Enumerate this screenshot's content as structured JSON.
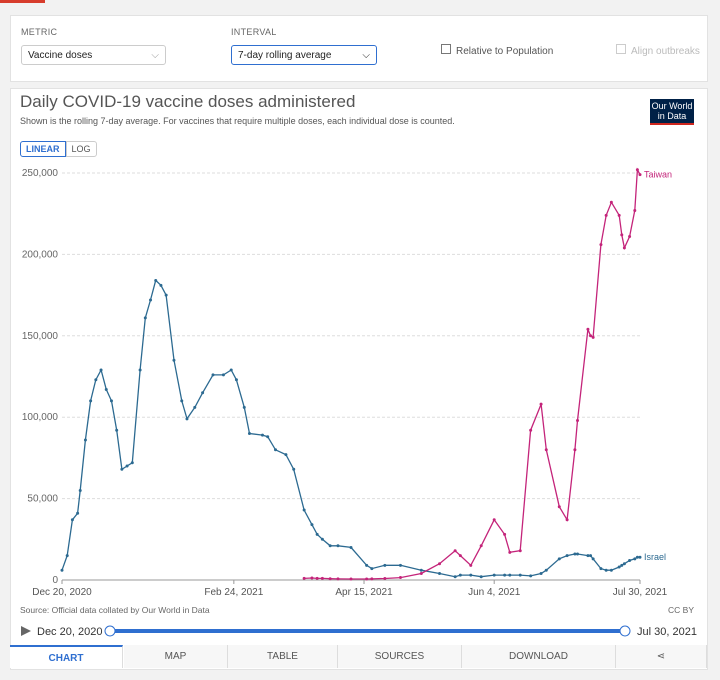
{
  "controls": {
    "metric_label": "METRIC",
    "metric_value": "Vaccine doses",
    "interval_label": "INTERVAL",
    "interval_value": "7-day rolling average",
    "relative": "Relative to Population",
    "align": "Align outbreaks"
  },
  "logo": "Our World in Data",
  "scale_buttons": [
    "LINEAR",
    "LOG"
  ],
  "chart_data": {
    "type": "line",
    "title": "Daily COVID-19 vaccine doses administered",
    "subtitle": "Shown is the rolling 7-day average. For vaccines that require multiple doses, each individual dose is counted.",
    "x": [
      "2020-12-20",
      "2020-12-22",
      "2020-12-24",
      "2020-12-26",
      "2020-12-27",
      "2020-12-29",
      "2020-12-31",
      "2021-01-02",
      "2021-01-04",
      "2021-01-06",
      "2021-01-08",
      "2021-01-10",
      "2021-01-12",
      "2021-01-14",
      "2021-01-16",
      "2021-01-19",
      "2021-01-21",
      "2021-01-23",
      "2021-01-25",
      "2021-01-27",
      "2021-01-29",
      "2021-02-01",
      "2021-02-04",
      "2021-02-06",
      "2021-02-09",
      "2021-02-12",
      "2021-02-16",
      "2021-02-20",
      "2021-02-23",
      "2021-02-25",
      "2021-02-28",
      "2021-03-02",
      "2021-03-07",
      "2021-03-09",
      "2021-03-12",
      "2021-03-16",
      "2021-03-19",
      "2021-03-23",
      "2021-03-26",
      "2021-03-28",
      "2021-03-30",
      "2021-04-02",
      "2021-04-05",
      "2021-04-10",
      "2021-04-16",
      "2021-04-18",
      "2021-04-23",
      "2021-04-29",
      "2021-05-07",
      "2021-05-14",
      "2021-05-20",
      "2021-05-22",
      "2021-05-26",
      "2021-05-30",
      "2021-06-04",
      "2021-06-08",
      "2021-06-10",
      "2021-06-14",
      "2021-06-18",
      "2021-06-22",
      "2021-06-24",
      "2021-06-29",
      "2021-07-02",
      "2021-07-05",
      "2021-07-06",
      "2021-07-10",
      "2021-07-11",
      "2021-07-12",
      "2021-07-15",
      "2021-07-17",
      "2021-07-19",
      "2021-07-22",
      "2021-07-23",
      "2021-07-24",
      "2021-07-26",
      "2021-07-28",
      "2021-07-29",
      "2021-07-30"
    ],
    "series": [
      {
        "name": "Israel",
        "color": "#2c6a91",
        "values": [
          6000,
          15000,
          37000,
          41000,
          55000,
          86000,
          110000,
          123000,
          129000,
          117000,
          110000,
          92000,
          68000,
          70000,
          72000,
          129000,
          161000,
          172000,
          184000,
          181000,
          175000,
          135000,
          110000,
          99000,
          106000,
          115000,
          126000,
          126000,
          129000,
          123000,
          106000,
          90000,
          89000,
          88000,
          80000,
          77000,
          68000,
          43000,
          34000,
          28000,
          25000,
          21000,
          21000,
          20000,
          9000,
          7000,
          9000,
          9000,
          6000,
          4000,
          2000,
          3000,
          3000,
          2000,
          3000,
          3000,
          3000,
          3000,
          2500,
          4000,
          6000,
          13000,
          15000,
          16000,
          16000,
          15000,
          15000,
          13000,
          7000,
          6000,
          6000,
          8000,
          9000,
          10000,
          12000,
          13000,
          14000,
          14000
        ]
      },
      {
        "name": "Taiwan",
        "color": "#c4247a",
        "values": [
          null,
          null,
          null,
          null,
          null,
          null,
          null,
          null,
          null,
          null,
          null,
          null,
          null,
          null,
          null,
          null,
          null,
          null,
          null,
          null,
          null,
          null,
          null,
          null,
          null,
          null,
          null,
          null,
          null,
          null,
          null,
          null,
          null,
          null,
          null,
          null,
          null,
          1000,
          1200,
          1000,
          1000,
          800,
          700,
          600,
          600,
          700,
          900,
          1500,
          4000,
          10000,
          18000,
          15000,
          9000,
          21000,
          37000,
          28000,
          17000,
          18000,
          92000,
          108000,
          80000,
          45000,
          37000,
          80000,
          98000,
          154000,
          150000,
          149000,
          206000,
          224000,
          232000,
          224000,
          212000,
          204000,
          211000,
          227000,
          252000,
          249000
        ]
      }
    ],
    "xlim": [
      "2020-12-20",
      "2021-07-30"
    ],
    "xticks": [
      {
        "value": "2020-12-20",
        "label": "Dec 20, 2020"
      },
      {
        "value": "2021-02-24",
        "label": "Feb 24, 2021"
      },
      {
        "value": "2021-04-15",
        "label": "Apr 15, 2021"
      },
      {
        "value": "2021-06-04",
        "label": "Jun 4, 2021"
      },
      {
        "value": "2021-07-30",
        "label": "Jul 30, 2021"
      }
    ],
    "ylim": [
      0,
      250000
    ],
    "yticks": [
      0,
      {
        "value": 50000,
        "label": "50,000"
      },
      {
        "value": 100000,
        "label": "100,000"
      },
      {
        "value": 150000,
        "label": "150,000"
      },
      {
        "value": 200000,
        "label": "200,000"
      },
      {
        "value": 250000,
        "label": "250,000"
      }
    ],
    "grid": true
  },
  "source": "Source: Official data collated by Our World in Data",
  "license": "CC BY",
  "timeline": {
    "start": "Dec 20, 2020",
    "end": "Jul 30, 2021"
  },
  "tabs": [
    "CHART",
    "MAP",
    "TABLE",
    "SOURCES",
    "DOWNLOAD"
  ]
}
